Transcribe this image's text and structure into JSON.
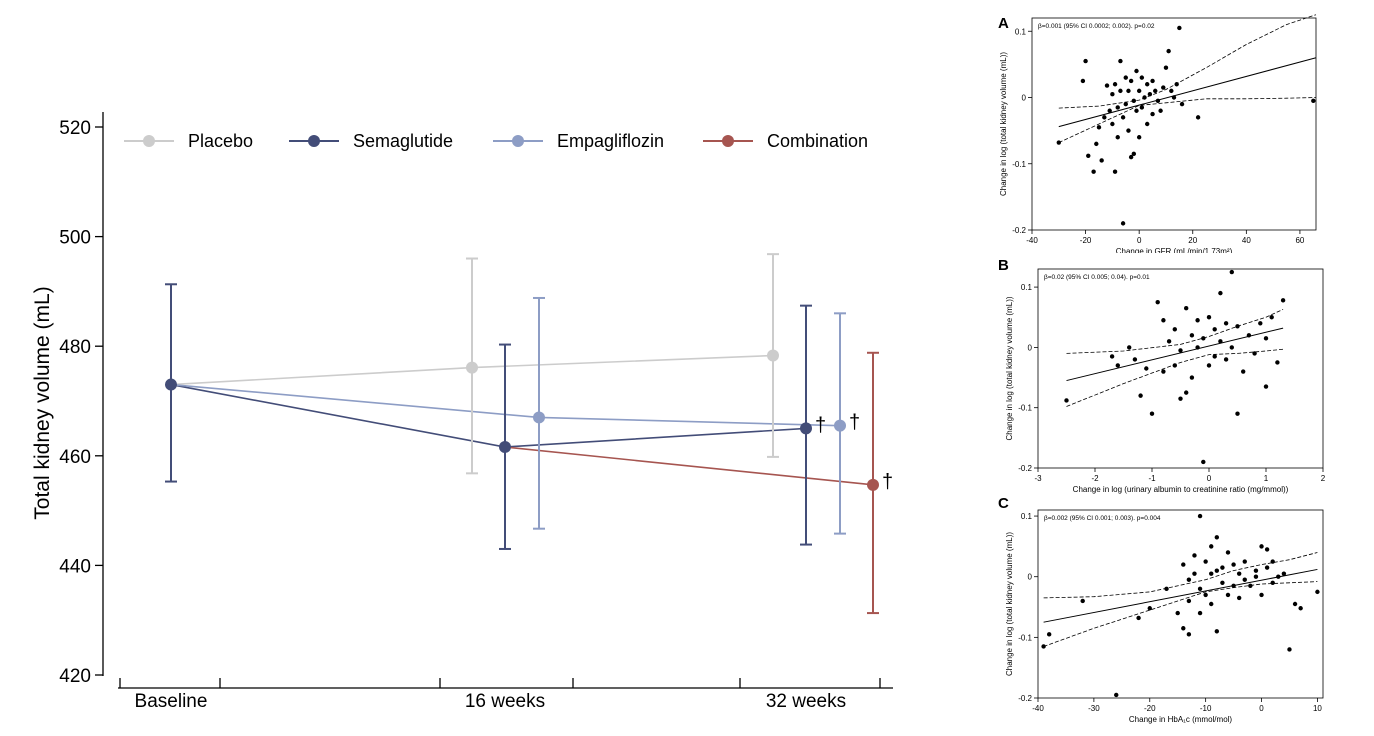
{
  "chart_data": [
    {
      "type": "line",
      "title": "",
      "xlabel": "",
      "ylabel": "Total kidney volume (mL)",
      "ylim": [
        420,
        520
      ],
      "yticks": [
        420,
        440,
        460,
        480,
        500,
        520
      ],
      "categories": [
        "Baseline",
        "16 weeks",
        "32 weeks"
      ],
      "legend_position": "top",
      "series": [
        {
          "name": "Placebo",
          "color": "#cccccc",
          "points": [
            {
              "x": "Baseline",
              "y": 473,
              "lo": 455.3,
              "hi": 491.3
            },
            {
              "x": "16 weeks",
              "y": 476.1,
              "lo": 456.8,
              "hi": 496.0
            },
            {
              "x": "32 weeks",
              "y": 478.3,
              "lo": 459.8,
              "hi": 496.8
            }
          ]
        },
        {
          "name": "Semaglutide",
          "color": "#434d78",
          "points": [
            {
              "x": "Baseline",
              "y": 473,
              "lo": 455.3,
              "hi": 491.3
            },
            {
              "x": "16 weeks",
              "y": 461.6,
              "lo": 443.0,
              "hi": 480.3
            },
            {
              "x": "32 weeks",
              "y": 465.0,
              "lo": 443.8,
              "hi": 487.4,
              "annotation": "†"
            }
          ]
        },
        {
          "name": "Empagliflozin",
          "color": "#8d9dc5",
          "points": [
            {
              "x": "Baseline",
              "y": 473,
              "lo": 455.3,
              "hi": 491.3
            },
            {
              "x": "16 weeks",
              "y": 467.0,
              "lo": 446.7,
              "hi": 488.8
            },
            {
              "x": "32 weeks",
              "y": 465.5,
              "lo": 445.8,
              "hi": 486.0,
              "annotation": "†"
            }
          ]
        },
        {
          "name": "Combination",
          "color": "#a65550",
          "points": [
            {
              "x": "16 weeks",
              "y": 461.6
            },
            {
              "x": "32 weeks",
              "y": 454.7,
              "lo": 431.3,
              "hi": 478.8,
              "annotation": "†"
            }
          ]
        }
      ]
    },
    {
      "type": "scatter",
      "panel_label": "A",
      "annotation": "β=0.001 (95% CI 0.0002; 0.002). p=0.02",
      "xlabel": "Change in GFR (mL/min/1.73m²)",
      "ylabel": "Change in log (total kidney volume (mL))",
      "xlim": [
        -40,
        66
      ],
      "ylim": [
        -0.2,
        0.12
      ],
      "xticks": [
        -40,
        -20,
        0,
        20,
        40,
        60
      ],
      "yticks": [
        -0.2,
        -0.1,
        0,
        0.1
      ],
      "fit": {
        "x0": -30,
        "y0": -0.044,
        "x1": 66,
        "y1": 0.06
      },
      "ci_upper": [
        [
          -30,
          -0.016
        ],
        [
          -15,
          -0.013
        ],
        [
          0,
          -0.004
        ],
        [
          10,
          0.012
        ],
        [
          25,
          0.045
        ],
        [
          40,
          0.08
        ],
        [
          55,
          0.11
        ],
        [
          66,
          0.125
        ]
      ],
      "ci_lower": [
        [
          -30,
          -0.068
        ],
        [
          -15,
          -0.04
        ],
        [
          0,
          -0.012
        ],
        [
          10,
          -0.008
        ],
        [
          25,
          -0.002
        ],
        [
          40,
          -0.002
        ],
        [
          55,
          -0.001
        ],
        [
          66,
          0.0
        ]
      ],
      "points": [
        [
          -30,
          -0.068
        ],
        [
          -20,
          0.055
        ],
        [
          -21,
          0.025
        ],
        [
          -19,
          -0.088
        ],
        [
          -17,
          -0.112
        ],
        [
          -16,
          -0.07
        ],
        [
          -15,
          -0.045
        ],
        [
          -14,
          -0.095
        ],
        [
          -13,
          -0.03
        ],
        [
          -12,
          0.018
        ],
        [
          -11,
          -0.02
        ],
        [
          -10,
          -0.04
        ],
        [
          -10,
          0.005
        ],
        [
          -9,
          0.02
        ],
        [
          -9,
          -0.112
        ],
        [
          -8,
          -0.06
        ],
        [
          -8,
          -0.015
        ],
        [
          -7,
          0.01
        ],
        [
          -7,
          0.055
        ],
        [
          -6,
          -0.03
        ],
        [
          -6,
          -0.19
        ],
        [
          -5,
          0.03
        ],
        [
          -5,
          -0.01
        ],
        [
          -4,
          -0.05
        ],
        [
          -4,
          0.01
        ],
        [
          -3,
          -0.09
        ],
        [
          -3,
          0.025
        ],
        [
          -2,
          -0.085
        ],
        [
          -2,
          -0.005
        ],
        [
          -1,
          0.04
        ],
        [
          -1,
          -0.02
        ],
        [
          0,
          0.01
        ],
        [
          0,
          -0.06
        ],
        [
          1,
          0.03
        ],
        [
          1,
          -0.015
        ],
        [
          2,
          0.0
        ],
        [
          3,
          -0.04
        ],
        [
          3,
          0.02
        ],
        [
          4,
          0.005
        ],
        [
          5,
          -0.025
        ],
        [
          5,
          0.025
        ],
        [
          6,
          0.01
        ],
        [
          7,
          -0.005
        ],
        [
          8,
          -0.02
        ],
        [
          9,
          0.015
        ],
        [
          10,
          0.045
        ],
        [
          11,
          0.07
        ],
        [
          12,
          0.01
        ],
        [
          13,
          0.0
        ],
        [
          14,
          0.02
        ],
        [
          15,
          0.105
        ],
        [
          16,
          -0.01
        ],
        [
          22,
          -0.03
        ],
        [
          65,
          -0.005
        ]
      ]
    },
    {
      "type": "scatter",
      "panel_label": "B",
      "annotation": "β=0.02 (95% CI 0.005; 0.04). p=0.01",
      "xlabel": "Change in log (urinary albumin to creatinine ratio (mg/mmol))",
      "ylabel": "Change in log (total kidney volume (mL))",
      "xlim": [
        -3,
        2
      ],
      "ylim": [
        -0.2,
        0.13
      ],
      "xticks": [
        -3,
        -2,
        -1,
        0,
        1,
        2
      ],
      "yticks": [
        -0.2,
        -0.1,
        0,
        0.1
      ],
      "fit": {
        "x0": -2.5,
        "y0": -0.055,
        "x1": 1.3,
        "y1": 0.032
      },
      "ci_upper": [
        [
          -2.5,
          -0.01
        ],
        [
          -1.5,
          -0.006
        ],
        [
          -0.5,
          0.005
        ],
        [
          0,
          0.018
        ],
        [
          0.5,
          0.035
        ],
        [
          1.0,
          0.05
        ],
        [
          1.3,
          0.063
        ]
      ],
      "ci_lower": [
        [
          -2.5,
          -0.098
        ],
        [
          -1.5,
          -0.06
        ],
        [
          -0.5,
          -0.025
        ],
        [
          0,
          -0.012
        ],
        [
          0.5,
          -0.01
        ],
        [
          1.0,
          -0.006
        ],
        [
          1.3,
          -0.003
        ]
      ],
      "points": [
        [
          -2.5,
          -0.088
        ],
        [
          -1.7,
          -0.015
        ],
        [
          -1.6,
          -0.03
        ],
        [
          -1.4,
          0.0
        ],
        [
          -1.3,
          -0.02
        ],
        [
          -1.2,
          -0.08
        ],
        [
          -1.1,
          -0.035
        ],
        [
          -1.0,
          -0.11
        ],
        [
          -0.9,
          0.075
        ],
        [
          -0.8,
          0.045
        ],
        [
          -0.8,
          -0.04
        ],
        [
          -0.7,
          0.01
        ],
        [
          -0.6,
          -0.03
        ],
        [
          -0.6,
          0.03
        ],
        [
          -0.5,
          -0.005
        ],
        [
          -0.5,
          -0.085
        ],
        [
          -0.4,
          0.065
        ],
        [
          -0.4,
          -0.075
        ],
        [
          -0.3,
          0.02
        ],
        [
          -0.3,
          -0.05
        ],
        [
          -0.2,
          0.045
        ],
        [
          -0.2,
          0.0
        ],
        [
          -0.1,
          -0.19
        ],
        [
          -0.1,
          0.015
        ],
        [
          0.0,
          0.05
        ],
        [
          0.0,
          -0.03
        ],
        [
          0.1,
          0.03
        ],
        [
          0.1,
          -0.015
        ],
        [
          0.2,
          0.01
        ],
        [
          0.2,
          0.09
        ],
        [
          0.3,
          0.04
        ],
        [
          0.3,
          -0.02
        ],
        [
          0.4,
          0.125
        ],
        [
          0.4,
          0.0
        ],
        [
          0.5,
          -0.11
        ],
        [
          0.5,
          0.035
        ],
        [
          0.6,
          -0.04
        ],
        [
          0.7,
          0.02
        ],
        [
          0.8,
          -0.01
        ],
        [
          0.9,
          0.04
        ],
        [
          1.0,
          -0.065
        ],
        [
          1.0,
          0.015
        ],
        [
          1.1,
          0.05
        ],
        [
          1.2,
          -0.025
        ],
        [
          1.3,
          0.078
        ]
      ]
    },
    {
      "type": "scatter",
      "panel_label": "C",
      "annotation": "β=0.002 (95% CI 0.001; 0.003). p=0.004",
      "xlabel": "Change in HbA₁c (mmol/mol)",
      "ylabel": "Change in log (total kidney volume (mL))",
      "xlim": [
        -40,
        11
      ],
      "ylim": [
        -0.2,
        0.11
      ],
      "xticks": [
        -40,
        -30,
        -20,
        -10,
        0,
        10
      ],
      "yticks": [
        -0.2,
        -0.1,
        0,
        0.1
      ],
      "fit": {
        "x0": -39,
        "y0": -0.075,
        "x1": 10,
        "y1": 0.012
      },
      "ci_upper": [
        [
          -39,
          -0.035
        ],
        [
          -30,
          -0.033
        ],
        [
          -20,
          -0.025
        ],
        [
          -10,
          -0.005
        ],
        [
          -5,
          0.01
        ],
        [
          0,
          0.02
        ],
        [
          5,
          0.028
        ],
        [
          10,
          0.04
        ]
      ],
      "ci_lower": [
        [
          -39,
          -0.115
        ],
        [
          -30,
          -0.085
        ],
        [
          -20,
          -0.055
        ],
        [
          -10,
          -0.025
        ],
        [
          -5,
          -0.018
        ],
        [
          0,
          -0.012
        ],
        [
          5,
          -0.01
        ],
        [
          10,
          -0.008
        ]
      ],
      "points": [
        [
          -39,
          -0.115
        ],
        [
          -38,
          -0.095
        ],
        [
          -32,
          -0.04
        ],
        [
          -26,
          -0.195
        ],
        [
          -22,
          -0.068
        ],
        [
          -20,
          -0.052
        ],
        [
          -17,
          -0.02
        ],
        [
          -15,
          -0.06
        ],
        [
          -14,
          -0.085
        ],
        [
          -14,
          0.02
        ],
        [
          -13,
          -0.095
        ],
        [
          -13,
          -0.04
        ],
        [
          -13,
          -0.005
        ],
        [
          -12,
          0.005
        ],
        [
          -12,
          0.035
        ],
        [
          -11,
          0.1
        ],
        [
          -11,
          -0.02
        ],
        [
          -11,
          -0.06
        ],
        [
          -10,
          0.025
        ],
        [
          -10,
          -0.03
        ],
        [
          -9,
          0.05
        ],
        [
          -9,
          0.005
        ],
        [
          -9,
          -0.045
        ],
        [
          -8,
          0.065
        ],
        [
          -8,
          -0.09
        ],
        [
          -8,
          0.01
        ],
        [
          -7,
          0.015
        ],
        [
          -7,
          -0.01
        ],
        [
          -6,
          0.04
        ],
        [
          -6,
          -0.03
        ],
        [
          -5,
          0.02
        ],
        [
          -5,
          -0.015
        ],
        [
          -4,
          0.005
        ],
        [
          -4,
          -0.035
        ],
        [
          -3,
          0.025
        ],
        [
          -3,
          -0.005
        ],
        [
          -2,
          -0.015
        ],
        [
          -1,
          0.01
        ],
        [
          -1,
          0.0
        ],
        [
          0,
          0.05
        ],
        [
          0,
          -0.03
        ],
        [
          1,
          0.015
        ],
        [
          1,
          0.045
        ],
        [
          2,
          -0.01
        ],
        [
          2,
          0.025
        ],
        [
          3,
          0.0
        ],
        [
          4,
          0.005
        ],
        [
          5,
          -0.12
        ],
        [
          6,
          -0.045
        ],
        [
          7,
          -0.052
        ],
        [
          10,
          -0.025
        ]
      ]
    }
  ]
}
